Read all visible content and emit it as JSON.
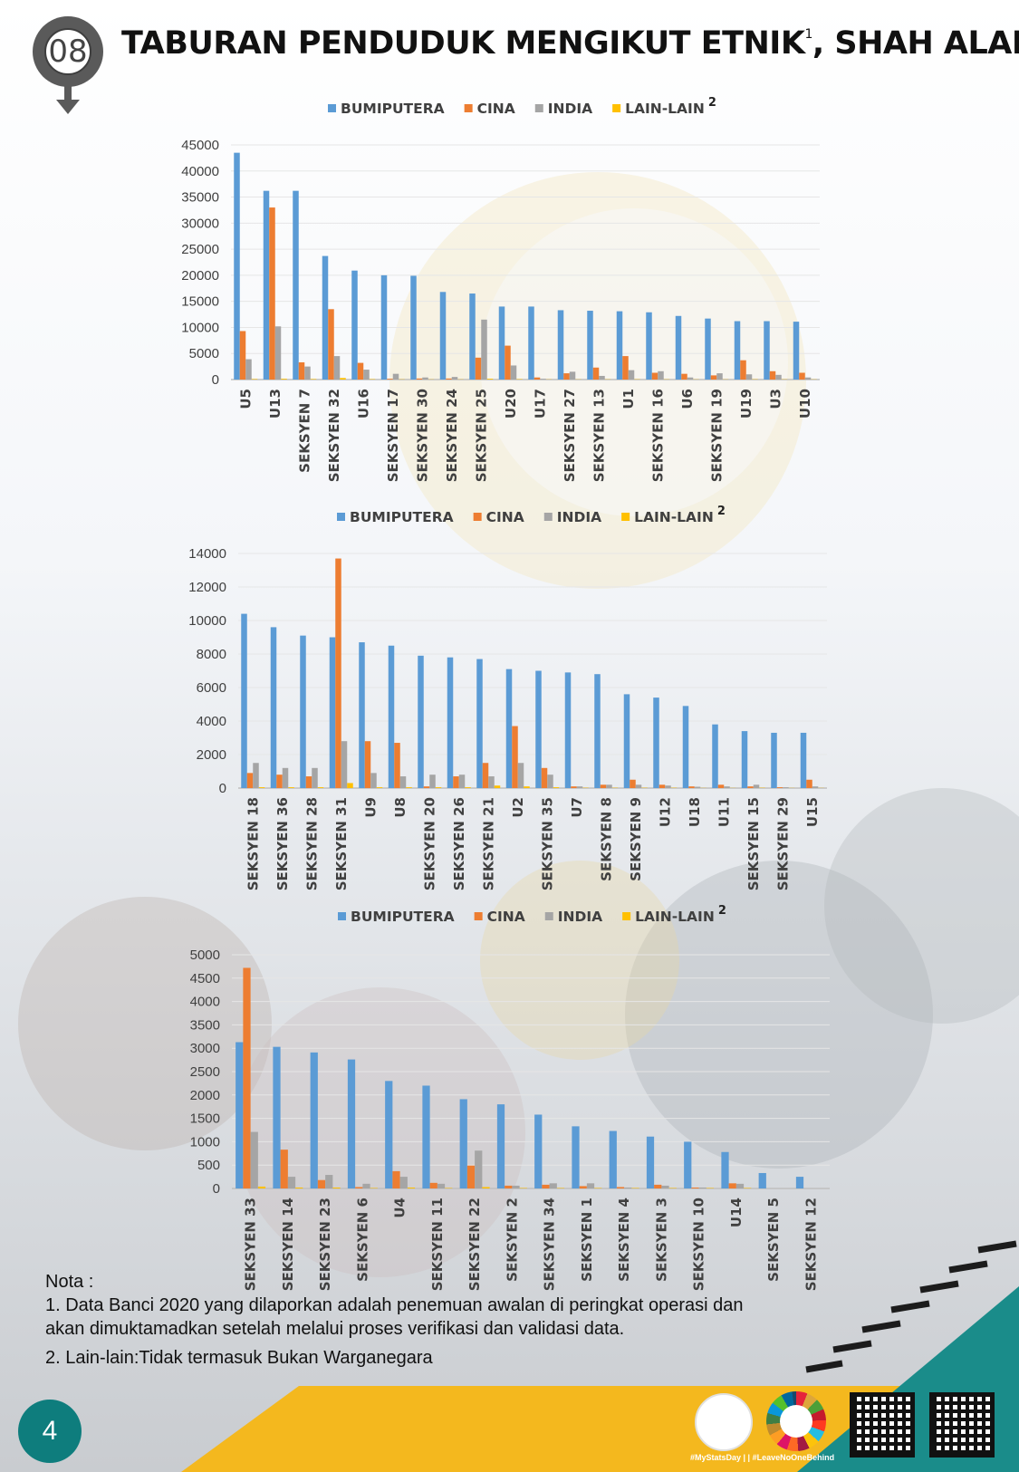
{
  "header": {
    "badge": "08",
    "title_part1": "TABURAN PENDUDUK MENGIKUT ETNIK",
    "title_sup": "1",
    "title_part2": ", SHAH ALAM"
  },
  "legend": {
    "items": [
      "BUMIPUTERA",
      "CINA",
      "INDIA",
      "LAIN-LAIN"
    ],
    "sup": "2",
    "colors": [
      "#5b9bd5",
      "#ed7d31",
      "#a5a5a5",
      "#ffc000"
    ]
  },
  "chart_data": [
    {
      "type": "bar",
      "ylim": [
        0,
        45000
      ],
      "yticks": [
        0,
        5000,
        10000,
        15000,
        20000,
        25000,
        30000,
        35000,
        40000,
        45000
      ],
      "categories": [
        "U5",
        "U13",
        "SEKSYEN 7",
        "SEKSYEN 32",
        "U16",
        "SEKSYEN 17",
        "SEKSYEN 30",
        "SEKSYEN 24",
        "SEKSYEN 25",
        "U20",
        "U17",
        "SEKSYEN 27",
        "SEKSYEN 13",
        "U1",
        "SEKSYEN 16",
        "U6",
        "SEKSYEN 19",
        "U19",
        "U3",
        "U10"
      ],
      "series": [
        {
          "name": "BUMIPUTERA",
          "values": [
            43500,
            36200,
            36200,
            23700,
            20900,
            20000,
            19900,
            16800,
            16500,
            14000,
            14000,
            13300,
            13200,
            13100,
            12900,
            12200,
            11700,
            11200,
            11200,
            11100
          ]
        },
        {
          "name": "CINA",
          "values": [
            9300,
            33000,
            3300,
            13500,
            3200,
            150,
            200,
            200,
            4200,
            6500,
            400,
            1200,
            2300,
            4500,
            1300,
            1100,
            800,
            3700,
            1600,
            1300
          ]
        },
        {
          "name": "INDIA",
          "values": [
            3900,
            10200,
            2500,
            4500,
            1900,
            1100,
            400,
            500,
            11500,
            2700,
            150,
            1500,
            700,
            1800,
            1600,
            400,
            1200,
            1000,
            900,
            400
          ]
        },
        {
          "name": "LAIN-LAIN",
          "values": [
            100,
            150,
            100,
            300,
            80,
            50,
            40,
            40,
            150,
            80,
            40,
            40,
            50,
            60,
            50,
            40,
            40,
            60,
            50,
            40
          ]
        }
      ]
    },
    {
      "type": "bar",
      "ylim": [
        0,
        14000
      ],
      "yticks": [
        0,
        2000,
        4000,
        6000,
        8000,
        10000,
        12000,
        14000
      ],
      "categories": [
        "SEKSYEN 18",
        "SEKSYEN 36",
        "SEKSYEN 28",
        "SEKSYEN 31",
        "U9",
        "U8",
        "SEKSYEN 20",
        "SEKSYEN 26",
        "SEKSYEN 21",
        "U2",
        "SEKSYEN 35",
        "U7",
        "SEKSYEN 8",
        "SEKSYEN 9",
        "U12",
        "U18",
        "U11",
        "SEKSYEN 15",
        "SEKSYEN 29",
        "U15"
      ],
      "series": [
        {
          "name": "BUMIPUTERA",
          "values": [
            10400,
            9600,
            9100,
            9000,
            8700,
            8500,
            7900,
            7800,
            7700,
            7100,
            7000,
            6900,
            6800,
            5600,
            5400,
            4900,
            3800,
            3400,
            3300,
            3300
          ]
        },
        {
          "name": "CINA",
          "values": [
            900,
            800,
            700,
            13700,
            2800,
            2700,
            100,
            700,
            1500,
            3700,
            1200,
            100,
            200,
            500,
            200,
            100,
            200,
            100,
            50,
            500
          ]
        },
        {
          "name": "INDIA",
          "values": [
            1500,
            1200,
            1200,
            2800,
            900,
            700,
            800,
            800,
            700,
            1500,
            800,
            100,
            200,
            200,
            150,
            80,
            100,
            200,
            50,
            100
          ]
        },
        {
          "name": "LAIN-LAIN",
          "values": [
            50,
            50,
            50,
            300,
            50,
            50,
            50,
            50,
            150,
            100,
            50,
            20,
            20,
            20,
            20,
            10,
            10,
            20,
            10,
            10
          ]
        }
      ]
    },
    {
      "type": "bar",
      "ylim": [
        0,
        5000
      ],
      "yticks": [
        0,
        500,
        1000,
        1500,
        2000,
        2500,
        3000,
        3500,
        4000,
        4500,
        5000
      ],
      "categories": [
        "SEKSYEN 33",
        "SEKSYEN 14",
        "SEKSYEN 23",
        "SEKSYEN 6",
        "U4",
        "SEKSYEN 11",
        "SEKSYEN 22",
        "SEKSYEN 2",
        "SEKSYEN 34",
        "SEKSYEN 1",
        "SEKSYEN 4",
        "SEKSYEN 3",
        "SEKSYEN 10",
        "U14",
        "SEKSYEN 5",
        "SEKSYEN 12"
      ],
      "series": [
        {
          "name": "BUMIPUTERA",
          "values": [
            3130,
            3030,
            2910,
            2760,
            2300,
            2200,
            1910,
            1800,
            1580,
            1330,
            1230,
            1110,
            1000,
            780,
            330,
            250
          ]
        },
        {
          "name": "CINA",
          "values": [
            4720,
            830,
            180,
            30,
            370,
            120,
            490,
            60,
            80,
            50,
            30,
            80,
            20,
            110,
            0,
            0
          ]
        },
        {
          "name": "INDIA",
          "values": [
            1210,
            250,
            290,
            100,
            250,
            100,
            810,
            60,
            110,
            110,
            20,
            60,
            20,
            100,
            0,
            0
          ]
        },
        {
          "name": "LAIN-LAIN",
          "values": [
            40,
            20,
            20,
            10,
            20,
            10,
            30,
            10,
            10,
            10,
            10,
            10,
            10,
            10,
            0,
            0
          ]
        }
      ]
    }
  ],
  "notes": {
    "heading": "Nota :",
    "line1": "1. Data Banci 2020 yang dilaporkan adalah penemuan awalan di peringkat operasi dan",
    "line1b": "akan dimuktamadkan setelah melalui proses verifikasi dan validasi data.",
    "line2": "2. Lain-lain:Tidak termasuk Bukan Warganegara"
  },
  "footer": {
    "page_number": "4",
    "hashtags": "#MyStatsDay | | #LeaveNoOneBehind"
  }
}
